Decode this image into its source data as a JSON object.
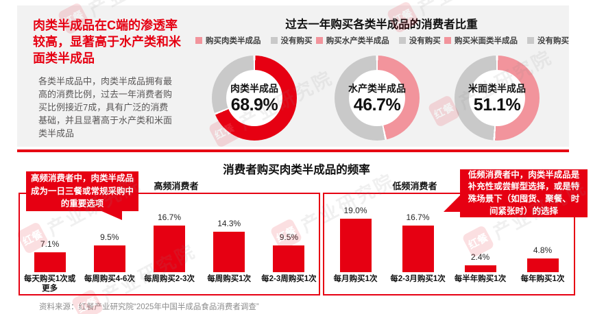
{
  "colors": {
    "brand_red": "#E60012",
    "pink": "#F2949C",
    "slice_gray": "#C9C9C9",
    "panel_bg": "#F2F2F2"
  },
  "watermark": {
    "logo": "红餐",
    "text": "产业研究院"
  },
  "intro": {
    "heading": "肉类半成品在C端的渗透率较高，显著高于水产类和米面类半成品",
    "body": "各类半成品中，肉类半成品拥有最高的消费比例，过去一年消费者购买比例接近7成，具有广泛的消费基础，并且显著高于水产类和米面类半成品"
  },
  "donut_section": {
    "title": "过去一年购买各类半成品的消费者比重",
    "legend": [
      {
        "label": "购买肉类半成品",
        "swatch": "#F2949C"
      },
      {
        "label": "没有购买",
        "swatch": "#C9C9C9"
      },
      {
        "label": "购买水产类半成品",
        "swatch": "#F2949C"
      },
      {
        "label": "没有购买",
        "swatch": "#C9C9C9"
      },
      {
        "label": "购买米面类半成品",
        "swatch": "#F2949C"
      },
      {
        "label": "没有购买",
        "swatch": "#C9C9C9"
      }
    ]
  },
  "freq_section": {
    "title": "消费者购买肉类半成品的频率",
    "high_label": "高频消费者",
    "low_label": "低频消费者",
    "callout_high": "高频消费者中，肉类半成品成为一日三餐或常规采购中的重要选项",
    "callout_low": "低频消费者中，肉类半成品是补充性或尝鲜型选择，或是特殊场景下（如囤货、聚餐、时间紧张时）的选择"
  },
  "source": "资料来源：红餐产业研究院“2025年中国半成品食品消费者调查”",
  "chart_data": [
    {
      "type": "pie",
      "title": "过去一年购买各类半成品的消费者比重",
      "legend_position": "top",
      "donuts": [
        {
          "name": "肉类半成品",
          "value": 68.9,
          "value_label": "68.9%",
          "rest": 31.1,
          "slices": [
            "购买肉类半成品",
            "没有购买"
          ],
          "color": "#E60012",
          "rest_color": "#C9C9C9"
        },
        {
          "name": "水产类半成品",
          "value": 46.7,
          "value_label": "46.7%",
          "rest": 53.3,
          "slices": [
            "购买水产类半成品",
            "没有购买"
          ],
          "color": "#F2949C",
          "rest_color": "#C9C9C9"
        },
        {
          "name": "米面类半成品",
          "value": 51.1,
          "value_label": "51.1%",
          "rest": 48.9,
          "slices": [
            "购买米面类半成品",
            "没有购买"
          ],
          "color": "#F2949C",
          "rest_color": "#C9C9C9"
        }
      ]
    },
    {
      "type": "bar",
      "title": "消费者购买肉类半成品的频率",
      "ylim": [
        0,
        20
      ],
      "bar_color": "#E60012",
      "groups": [
        {
          "name": "高频消费者",
          "categories": [
            "每天购买1次或更多",
            "每周购买4-6次",
            "每周购买2-3次",
            "每周购买1次",
            "每2-3周购买1次"
          ],
          "values": [
            7.1,
            9.5,
            16.7,
            14.3,
            9.5
          ],
          "value_labels": [
            "7.1%",
            "9.5%",
            "16.7%",
            "14.3%",
            "9.5%"
          ]
        },
        {
          "name": "低频消费者",
          "categories": [
            "每月购买1次",
            "每2-3月购买1次",
            "每半年购买1次",
            "每年购买1次"
          ],
          "values": [
            19.0,
            16.7,
            2.4,
            4.8
          ],
          "value_labels": [
            "19.0%",
            "16.7%",
            "2.4%",
            "4.8%"
          ]
        }
      ]
    }
  ]
}
